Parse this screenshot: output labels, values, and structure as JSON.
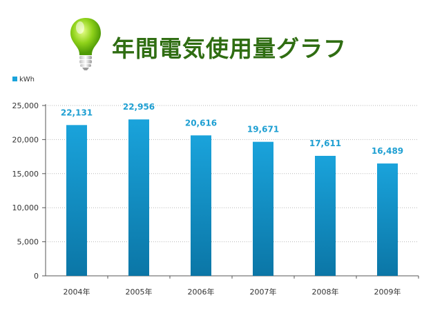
{
  "title": "年間電気使用量グラフ",
  "colors": {
    "bar_top": "#1aa3db",
    "bar_bottom": "#0b76a6",
    "value_label": "#1e9fd2",
    "title": "#2f6d12"
  },
  "icons": {
    "header_icon": "lightbulb-icon"
  },
  "chart_data": {
    "type": "bar",
    "categories": [
      "2004年",
      "2005年",
      "2006年",
      "2007年",
      "2008年",
      "2009年"
    ],
    "values": [
      22131,
      22956,
      20616,
      19671,
      17611,
      16489
    ],
    "value_labels": [
      "22,131",
      "22,956",
      "20,616",
      "19,671",
      "17,611",
      "16,489"
    ],
    "yticks": [
      "0",
      "5,000",
      "10,000",
      "15,000",
      "20,000",
      "25,000"
    ],
    "ytick_values": [
      0,
      5000,
      10000,
      15000,
      20000,
      25000
    ],
    "ylim": [
      0,
      25000
    ],
    "legend": [
      "kWh"
    ],
    "legend_position": "top-left",
    "grid": true
  }
}
